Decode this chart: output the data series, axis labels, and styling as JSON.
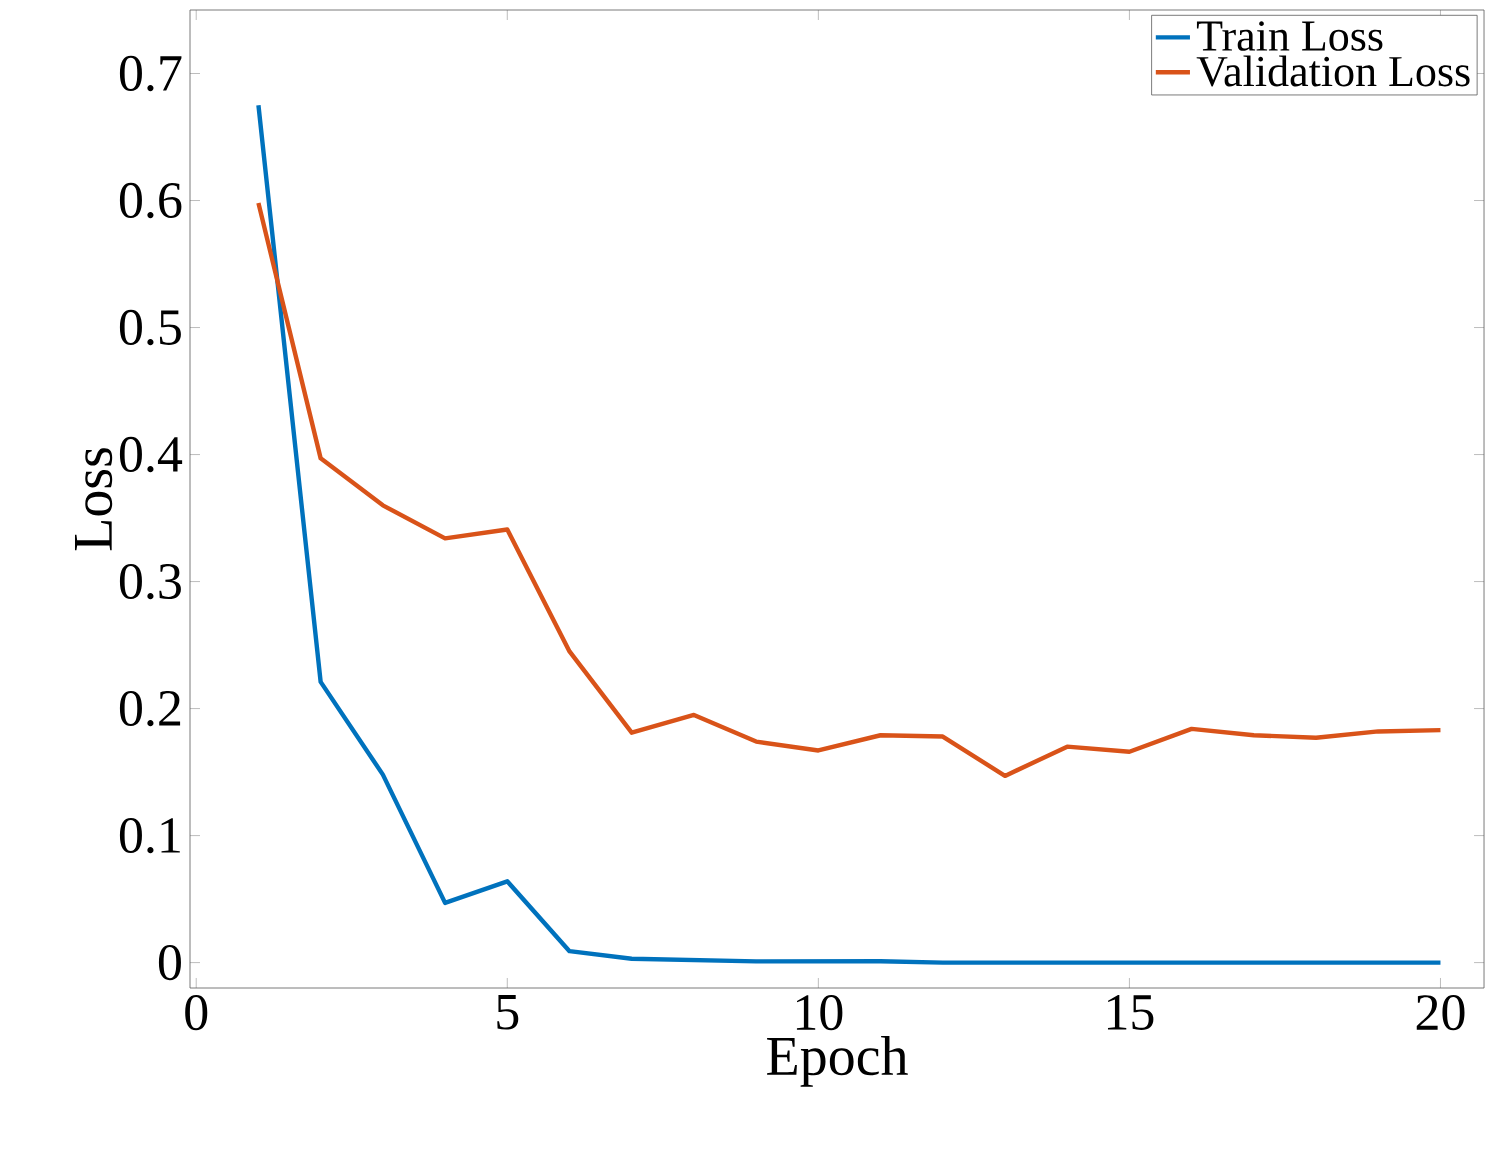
{
  "chart_data": {
    "type": "line",
    "xlabel": "Epoch",
    "ylabel": "Loss",
    "x": [
      1,
      2,
      3,
      4,
      5,
      6,
      7,
      8,
      9,
      10,
      11,
      12,
      13,
      14,
      15,
      16,
      17,
      18,
      19,
      20
    ],
    "series": [
      {
        "name": "Train Loss",
        "color": "#0072bd",
        "values": [
          0.675,
          0.221,
          0.148,
          0.047,
          0.064,
          0.009,
          0.003,
          0.002,
          0.001,
          0.001,
          0.001,
          0.0,
          0.0,
          0.0,
          0.0,
          0.0,
          0.0,
          0.0,
          0.0,
          0.0
        ]
      },
      {
        "name": "Validation Loss",
        "color": "#d95319",
        "values": [
          0.598,
          0.397,
          0.36,
          0.334,
          0.341,
          0.245,
          0.181,
          0.195,
          0.174,
          0.167,
          0.179,
          0.178,
          0.147,
          0.17,
          0.166,
          0.184,
          0.179,
          0.177,
          0.182,
          0.183
        ]
      }
    ],
    "xlim": [
      -0.1,
      20.7
    ],
    "ylim": [
      -0.02,
      0.75
    ],
    "xticks": [
      0,
      5,
      10,
      15,
      20
    ],
    "yticks": [
      0,
      0.1,
      0.2,
      0.3,
      0.4,
      0.5,
      0.6,
      0.7
    ],
    "legend": "top right",
    "grid": false,
    "marker": "none",
    "line_style": "solid"
  }
}
